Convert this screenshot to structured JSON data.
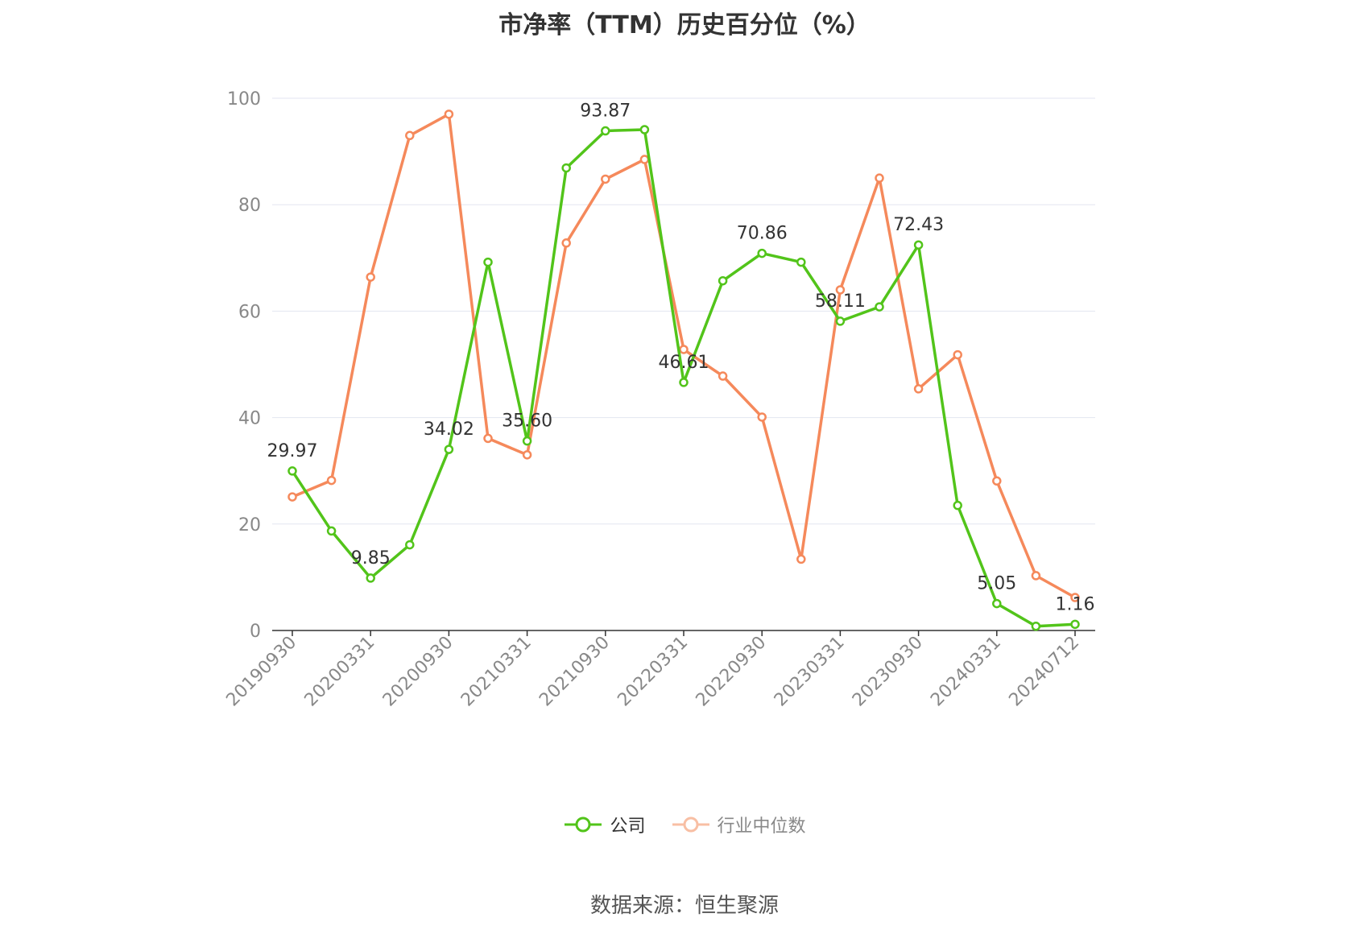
{
  "chart_data": {
    "type": "line",
    "title": "市净率（TTM）历史百分位（%）",
    "xlabel": "",
    "ylabel": "",
    "ylim": [
      0,
      100
    ],
    "yticks": [
      0,
      20,
      40,
      60,
      80,
      100
    ],
    "grid": true,
    "legend_position": "bottom",
    "x": [
      "20190930",
      "20191231",
      "20200331",
      "20200630",
      "20200930",
      "20201231",
      "20210331",
      "20210630",
      "20210930",
      "20211231",
      "20220331",
      "20220630",
      "20220930",
      "20221231",
      "20230331",
      "20230630",
      "20230930",
      "20231231",
      "20240331",
      "20240630",
      "20240712"
    ],
    "x_tick_labels": [
      "20190930",
      "20200331",
      "20200930",
      "20210331",
      "20210930",
      "20220331",
      "20220930",
      "20230331",
      "20230930",
      "20240331",
      "20240712"
    ],
    "series": [
      {
        "name": "公司",
        "color": "#52c41a",
        "values": [
          29.97,
          18.7,
          9.85,
          16.1,
          34.02,
          69.2,
          35.6,
          86.9,
          93.87,
          94.1,
          46.61,
          65.7,
          70.86,
          69.2,
          58.11,
          60.8,
          72.43,
          23.5,
          5.05,
          0.8,
          1.16
        ],
        "labels": {
          "0": "29.97",
          "2": "9.85",
          "4": "34.02",
          "6": "35.60",
          "8": "93.87",
          "10": "46.61",
          "12": "70.86",
          "14": "58.11",
          "16": "72.43",
          "18": "5.05",
          "20": "1.16"
        }
      },
      {
        "name": "行业中位数",
        "color": "#f5895b",
        "values": [
          25.1,
          28.2,
          66.4,
          93.0,
          97.0,
          36.1,
          33.0,
          72.8,
          84.8,
          88.5,
          52.8,
          47.8,
          40.1,
          13.4,
          64.0,
          85.0,
          45.4,
          51.8,
          28.1,
          10.3,
          6.2
        ]
      }
    ]
  },
  "source": "数据来源：恒生聚源"
}
